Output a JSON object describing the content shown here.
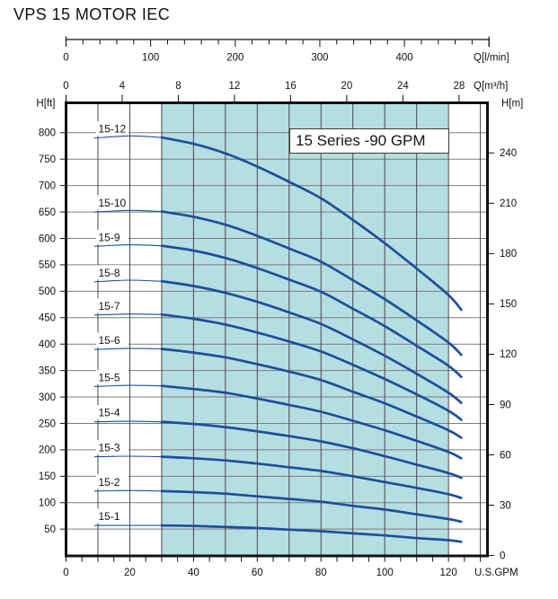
{
  "title": "VPS 15 MOTOR IEC",
  "region_label": "15 Series -90 GPM",
  "colors": {
    "curve": "#1d4f9a",
    "duty_shading": "#b5dee3",
    "grid_vertical": "#474747",
    "grid_horizontal": "#7d7d7d",
    "axis": "#111111",
    "label_box": "#ffffff"
  },
  "chart_data": {
    "type": "line",
    "title": "15 Series -90 GPM",
    "xlabel": "U.S.GPM",
    "ylabel_left": "H[ft]",
    "ylabel_right": "H[m]",
    "duty_range_gpm": [
      30,
      120
    ],
    "x_gpm": [
      9,
      20,
      30,
      40,
      50,
      60,
      70,
      80,
      90,
      100,
      110,
      120,
      124
    ],
    "series": [
      {
        "name": "15-12",
        "h_ft": [
          790,
          794,
          791,
          779,
          761,
          736,
          707,
          676,
          635,
          591,
          543,
          493,
          465
        ]
      },
      {
        "name": "15-10",
        "h_ft": [
          650,
          653,
          651,
          641,
          626,
          605,
          581,
          556,
          521,
          485,
          445,
          403,
          380
        ]
      },
      {
        "name": "15-9",
        "h_ft": [
          585,
          588,
          586,
          577,
          563,
          544,
          522,
          499,
          467,
          434,
          397,
          359,
          338
        ]
      },
      {
        "name": "15-8",
        "h_ft": [
          518,
          521,
          519,
          510,
          497,
          480,
          460,
          438,
          409,
          378,
          344,
          308,
          289
        ]
      },
      {
        "name": "15-7",
        "h_ft": [
          455,
          457,
          456,
          448,
          437,
          422,
          405,
          386,
          361,
          334,
          305,
          274,
          257
        ]
      },
      {
        "name": "15-6",
        "h_ft": [
          390,
          392,
          391,
          384,
          375,
          362,
          348,
          332,
          310,
          288,
          263,
          237,
          223
        ]
      },
      {
        "name": "15-5",
        "h_ft": [
          320,
          322,
          321,
          315,
          308,
          297,
          285,
          272,
          255,
          237,
          217,
          196,
          184
        ]
      },
      {
        "name": "15-4",
        "h_ft": [
          253,
          254,
          253,
          249,
          243,
          235,
          226,
          216,
          203,
          188,
          172,
          156,
          147
        ]
      },
      {
        "name": "15-3",
        "h_ft": [
          187,
          188,
          187,
          184,
          180,
          174,
          167,
          160,
          150,
          139,
          128,
          116,
          109
        ]
      },
      {
        "name": "15-2",
        "h_ft": [
          122,
          123,
          122,
          120,
          117,
          112,
          107,
          102,
          94,
          87,
          78,
          69,
          64
        ]
      },
      {
        "name": "15-1",
        "h_ft": [
          57,
          57,
          57,
          56,
          54,
          52,
          49,
          46,
          42,
          38,
          33,
          29,
          26
        ]
      }
    ],
    "axes": {
      "gpm": {
        "label": "U.S.GPM",
        "tick_labels": [
          0,
          20,
          40,
          60,
          80,
          100,
          120
        ],
        "minor_tick_step": 5,
        "grid_step": 10,
        "grid_max": 130,
        "axis_max": 132
      },
      "lmin": {
        "label": "Q[l/min]",
        "tick_labels": [
          0,
          100,
          200,
          300,
          400
        ],
        "minor_tick_step": 20,
        "ruler_max": 500
      },
      "m3h": {
        "label": "Q[m³/h]",
        "tick_labels": [
          0,
          4,
          8,
          12,
          16,
          20,
          24,
          28
        ]
      },
      "h_ft": {
        "label": "H[ft]",
        "tick_labels": [
          50,
          100,
          150,
          200,
          250,
          300,
          350,
          400,
          450,
          500,
          550,
          600,
          650,
          700,
          750,
          800
        ]
      },
      "h_m": {
        "label": "H[m]",
        "tick_labels": [
          0,
          30,
          60,
          90,
          120,
          150,
          180,
          210,
          240
        ]
      }
    },
    "grid": true,
    "legend_position": "labels-at-curve-start"
  }
}
